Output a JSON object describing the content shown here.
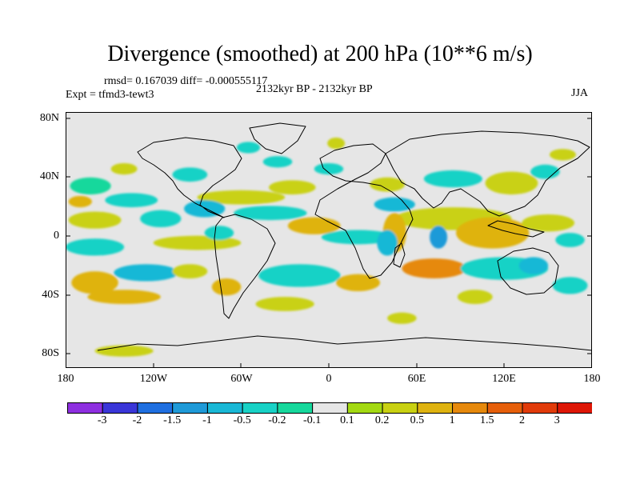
{
  "chart_data": {
    "type": "heatmap",
    "title": "Divergence (smoothed) at 200 hPa (10**6 m/s)",
    "stats_label": "rmsd= 0.167039  diff= -0.000555117",
    "experiment_label": "Expt = tfmd3-tewt3",
    "period_label": "2132kyr BP - 2132kyr BP",
    "season_label": "JJA",
    "x_ticks": [
      "180",
      "120W",
      "60W",
      "0",
      "60E",
      "120E",
      "180"
    ],
    "y_ticks": [
      "80N",
      "40N",
      "0",
      "40S",
      "80S"
    ],
    "xlim": [
      -180,
      180
    ],
    "ylim": [
      -90,
      90
    ],
    "colorbar": {
      "labels": [
        "-3",
        "-2",
        "-1.5",
        "-1",
        "-0.5",
        "-0.2",
        "-0.1",
        "0.1",
        "0.2",
        "0.5",
        "1",
        "1.5",
        "2",
        "3"
      ],
      "colors": [
        "#8e2fe0",
        "#3a36d8",
        "#1f6fe0",
        "#1f9ad8",
        "#19b8d6",
        "#18d2c6",
        "#16d89c",
        "#e6e6e6",
        "#a3d912",
        "#c9d112",
        "#dfb310",
        "#e6890c",
        "#e65f0a",
        "#e13b0a",
        "#de1606"
      ]
    },
    "background_color": "#e6e6e6",
    "blobs": [
      {
        "lon": -163,
        "lat": 38,
        "rx": 14,
        "ry": 6,
        "level": "-0.1"
      },
      {
        "lon": -135,
        "lat": 28,
        "rx": 18,
        "ry": 5,
        "level": "-0.2"
      },
      {
        "lon": -95,
        "lat": 46,
        "rx": 12,
        "ry": 5,
        "level": "-0.2"
      },
      {
        "lon": -60,
        "lat": 30,
        "rx": 30,
        "ry": 5,
        "level": "0.2"
      },
      {
        "lon": -25,
        "lat": 37,
        "rx": 16,
        "ry": 5,
        "level": "0.2"
      },
      {
        "lon": 40,
        "lat": 39,
        "rx": 12,
        "ry": 5,
        "level": "0.2"
      },
      {
        "lon": 85,
        "lat": 43,
        "rx": 20,
        "ry": 6,
        "level": "-0.2"
      },
      {
        "lon": 125,
        "lat": 40,
        "rx": 18,
        "ry": 8,
        "level": "0.2"
      },
      {
        "lon": 148,
        "lat": 48,
        "rx": 10,
        "ry": 5,
        "level": "-0.2"
      },
      {
        "lon": -160,
        "lat": 14,
        "rx": 18,
        "ry": 6,
        "level": "0.2"
      },
      {
        "lon": -115,
        "lat": 15,
        "rx": 14,
        "ry": 6,
        "level": "-0.2"
      },
      {
        "lon": -85,
        "lat": 22,
        "rx": 14,
        "ry": 6,
        "level": "-0.5"
      },
      {
        "lon": -40,
        "lat": 19,
        "rx": 25,
        "ry": 5,
        "level": "-0.2"
      },
      {
        "lon": -10,
        "lat": 10,
        "rx": 18,
        "ry": 6,
        "level": "0.5"
      },
      {
        "lon": 85,
        "lat": 15,
        "rx": 40,
        "ry": 8,
        "level": "0.2"
      },
      {
        "lon": 112,
        "lat": 5,
        "rx": 25,
        "ry": 11,
        "level": "0.5"
      },
      {
        "lon": 150,
        "lat": 12,
        "rx": 18,
        "ry": 6,
        "level": "0.2"
      },
      {
        "lon": -160,
        "lat": -5,
        "rx": 20,
        "ry": 6,
        "level": "-0.2"
      },
      {
        "lon": -90,
        "lat": -2,
        "rx": 30,
        "ry": 5,
        "level": "0.2"
      },
      {
        "lon": 20,
        "lat": 2,
        "rx": 25,
        "ry": 5,
        "level": "-0.2"
      },
      {
        "lon": 45,
        "lat": 5,
        "rx": 8,
        "ry": 14,
        "level": "0.5"
      },
      {
        "lon": 75,
        "lat": 2,
        "rx": 6,
        "ry": 8,
        "level": "-1"
      },
      {
        "lon": 72,
        "lat": -20,
        "rx": 22,
        "ry": 7,
        "level": "1"
      },
      {
        "lon": 120,
        "lat": -20,
        "rx": 30,
        "ry": 8,
        "level": "-0.2"
      },
      {
        "lon": -160,
        "lat": -30,
        "rx": 16,
        "ry": 8,
        "level": "0.5"
      },
      {
        "lon": -125,
        "lat": -23,
        "rx": 22,
        "ry": 6,
        "level": "-0.5"
      },
      {
        "lon": -70,
        "lat": -33,
        "rx": 10,
        "ry": 6,
        "level": "0.5"
      },
      {
        "lon": -20,
        "lat": -25,
        "rx": 28,
        "ry": 8,
        "level": "-0.2"
      },
      {
        "lon": 20,
        "lat": -30,
        "rx": 15,
        "ry": 6,
        "level": "0.5"
      },
      {
        "lon": 165,
        "lat": -32,
        "rx": 12,
        "ry": 6,
        "level": "-0.2"
      },
      {
        "lon": -140,
        "lat": -40,
        "rx": 25,
        "ry": 5,
        "level": "0.5"
      },
      {
        "lon": -30,
        "lat": -45,
        "rx": 20,
        "ry": 5,
        "level": "0.2"
      },
      {
        "lon": 100,
        "lat": -40,
        "rx": 12,
        "ry": 5,
        "level": "0.2"
      },
      {
        "lon": -140,
        "lat": -78,
        "rx": 20,
        "ry": 4,
        "level": "0.2"
      },
      {
        "lon": -55,
        "lat": 65,
        "rx": 8,
        "ry": 4,
        "level": "-0.2"
      },
      {
        "lon": 5,
        "lat": 68,
        "rx": 6,
        "ry": 4,
        "level": "0.2"
      },
      {
        "lon": -35,
        "lat": 55,
        "rx": 10,
        "ry": 4,
        "level": "-0.2"
      },
      {
        "lon": 160,
        "lat": 60,
        "rx": 9,
        "ry": 4,
        "level": "0.2"
      },
      {
        "lon": 45,
        "lat": 25,
        "rx": 14,
        "ry": 5,
        "level": "-0.5"
      },
      {
        "lon": -140,
        "lat": 50,
        "rx": 9,
        "ry": 4,
        "level": "0.2"
      },
      {
        "lon": 0,
        "lat": 50,
        "rx": 10,
        "ry": 4,
        "level": "-0.2"
      },
      {
        "lon": -75,
        "lat": 5,
        "rx": 10,
        "ry": 5,
        "level": "-0.2"
      },
      {
        "lon": 40,
        "lat": -2,
        "rx": 7,
        "ry": 9,
        "level": "-0.5"
      },
      {
        "lon": 50,
        "lat": -55,
        "rx": 10,
        "ry": 4,
        "level": "0.2"
      },
      {
        "lon": -170,
        "lat": 27,
        "rx": 8,
        "ry": 4,
        "level": "0.5"
      },
      {
        "lon": -95,
        "lat": -22,
        "rx": 12,
        "ry": 5,
        "level": "0.2"
      },
      {
        "lon": 140,
        "lat": -18,
        "rx": 10,
        "ry": 6,
        "level": "-0.5"
      },
      {
        "lon": 165,
        "lat": 0,
        "rx": 10,
        "ry": 5,
        "level": "-0.2"
      }
    ]
  }
}
